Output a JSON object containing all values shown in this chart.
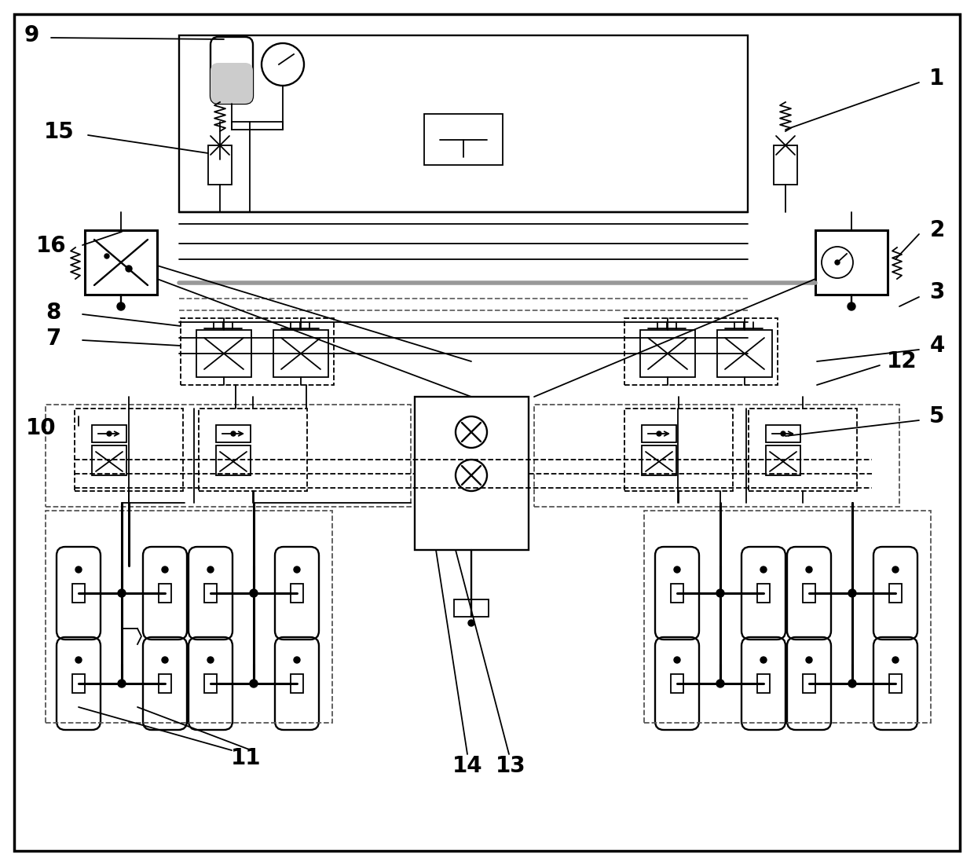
{
  "bg_color": "#ffffff",
  "line_color": "#000000",
  "label_color": "#000000",
  "figsize": [
    12.4,
    11.01
  ],
  "dpi": 100
}
